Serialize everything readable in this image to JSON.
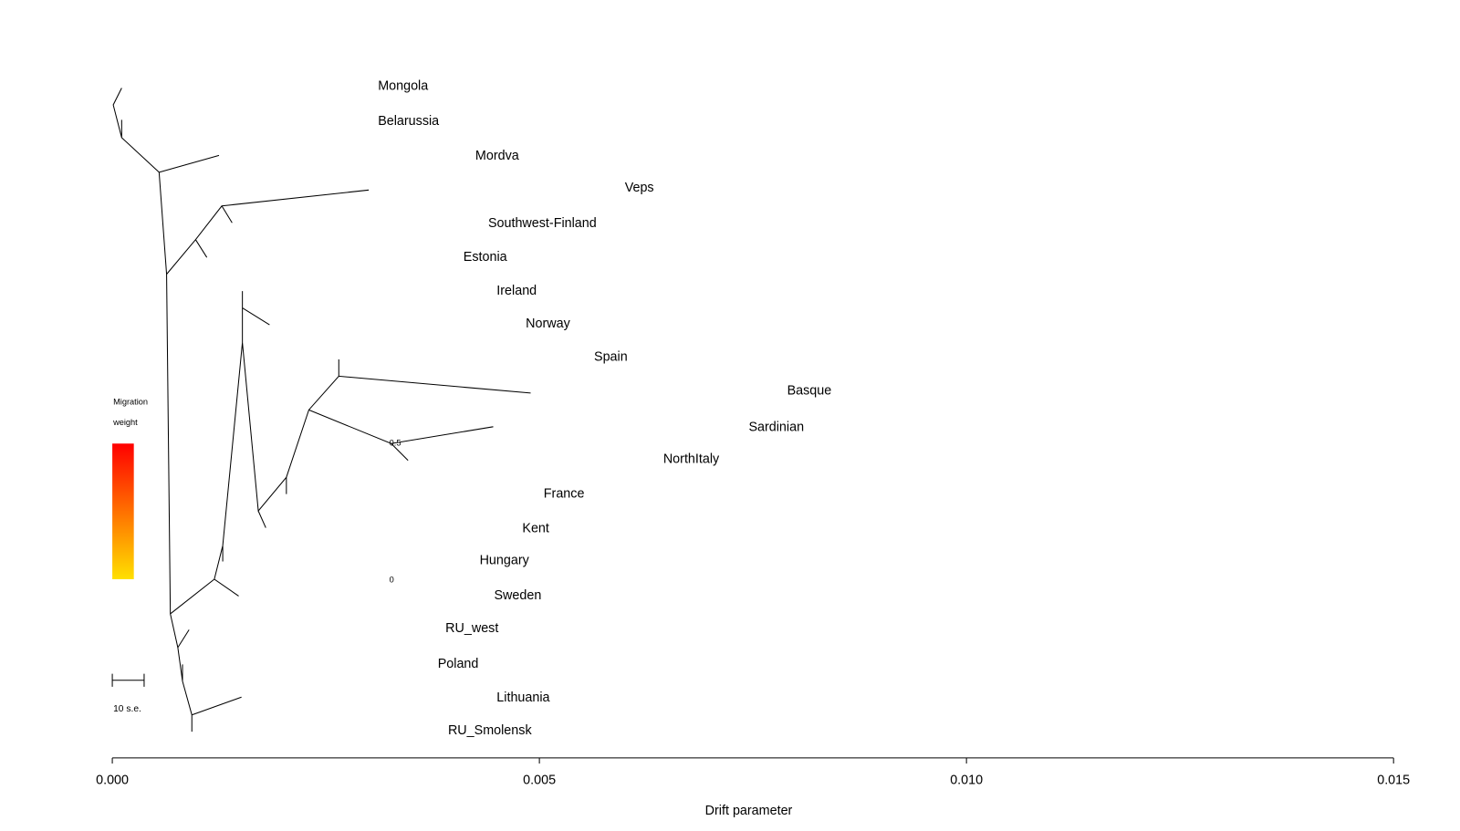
{
  "chart_data": {
    "type": "tree",
    "x_label": "Drift parameter",
    "xlim": [
      0,
      0.015
    ],
    "xticks": [
      {
        "value": 0,
        "label": "0.000"
      },
      0.005,
      {
        "value": 0.01,
        "label": "0.010"
      },
      0.015
    ],
    "leaves": [
      {
        "name": "Mongola",
        "x": 0.00311
      },
      {
        "name": "Belarussia",
        "x": 0.00311
      },
      {
        "name": "Mordva",
        "x": 0.00425
      },
      {
        "name": "Veps",
        "x": 0.006
      },
      {
        "name": "Southwest-Finland",
        "x": 0.0044
      },
      {
        "name": "Estonia",
        "x": 0.00411
      },
      {
        "name": "Ireland",
        "x": 0.0045
      },
      {
        "name": "Norway",
        "x": 0.00484
      },
      {
        "name": "Spain",
        "x": 0.00564
      },
      {
        "name": "Basque",
        "x": 0.0079
      },
      {
        "name": "Sardinian",
        "x": 0.00745
      },
      {
        "name": "NorthItaly",
        "x": 0.00645
      },
      {
        "name": "France",
        "x": 0.00505
      },
      {
        "name": "Kent",
        "x": 0.0048
      },
      {
        "name": "Hungary",
        "x": 0.0043
      },
      {
        "name": "Sweden",
        "x": 0.00447
      },
      {
        "name": "RU_west",
        "x": 0.0039
      },
      {
        "name": "Poland",
        "x": 0.00381
      },
      {
        "name": "Lithuania",
        "x": 0.0045
      },
      {
        "name": "RU_Smolensk",
        "x": 0.00393
      }
    ],
    "legend": {
      "title_line1": "Migration",
      "title_line2": "weight",
      "max_label": "0.5",
      "min_label": "0"
    },
    "scale_bar_label": "10 s.e."
  }
}
